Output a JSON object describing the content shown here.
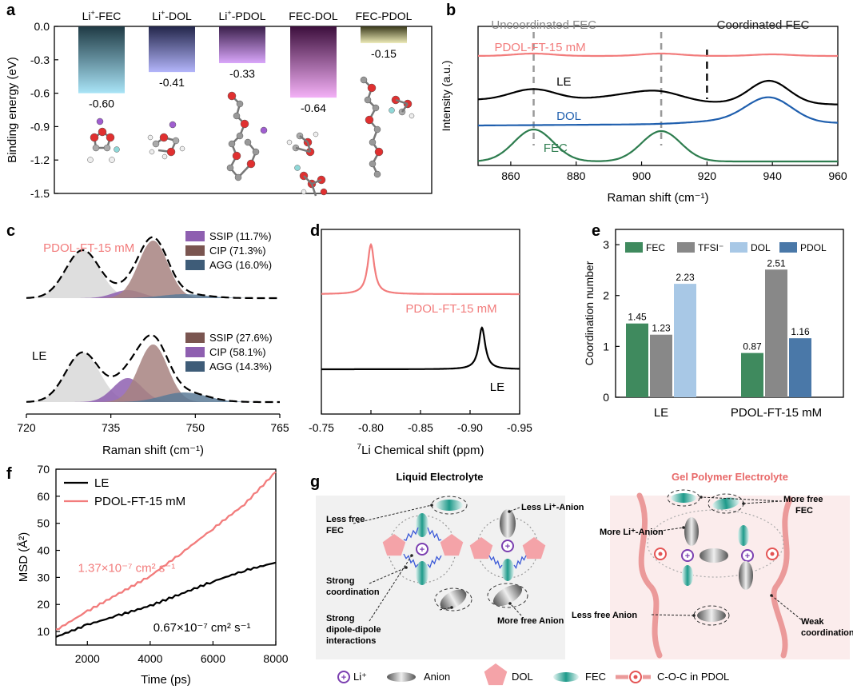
{
  "panels": {
    "a": "a",
    "b": "b",
    "c": "c",
    "d": "d",
    "e": "e",
    "f": "f",
    "g": "g"
  },
  "chart_data": [
    {
      "id": "a",
      "type": "bar",
      "title": "",
      "ylabel": "Binding energy (eV)",
      "ylim": [
        -1.5,
        0.0
      ],
      "yticks": [
        "0.0",
        "-0.3",
        "-0.6",
        "-0.9",
        "-1.2",
        "-1.5"
      ],
      "yticks_values": [
        0.0,
        -0.3,
        -0.6,
        -0.9,
        -1.2,
        -1.5
      ],
      "categories": [
        "Li⁺-FEC",
        "Li⁺-DOL",
        "Li⁺-PDOL",
        "FEC-DOL",
        "FEC-PDOL"
      ],
      "category_main": [
        "Li",
        "Li",
        "Li",
        "FEC-DOL",
        "FEC-PDOL"
      ],
      "category_sup": [
        "+",
        "+",
        "+",
        "",
        ""
      ],
      "category_rest": [
        "-FEC",
        "-DOL",
        "-PDOL",
        "",
        ""
      ],
      "values": [
        -0.6,
        -0.41,
        -0.33,
        -0.64,
        -0.15
      ],
      "value_labels": [
        "-0.60",
        "-0.41",
        "-0.33",
        "-0.64",
        "-0.15"
      ],
      "colors_top": [
        "#1f3a44",
        "#23264a",
        "#3a1f4a",
        "#3c0f3c",
        "#3a3a1c"
      ],
      "colors_bottom": [
        "#a9e4f7",
        "#b3b5fa",
        "#d9a6fa",
        "#f4b1f7",
        "#eceab7"
      ]
    },
    {
      "id": "b",
      "type": "line",
      "xlabel": "Raman shift (cm⁻¹)",
      "ylabel": "Intensity (a.u.)",
      "xlim": [
        850,
        960
      ],
      "xticks": [
        860,
        880,
        900,
        920,
        940,
        960
      ],
      "annotations": [
        "Uncoordinated FEC",
        "Coordinated FEC"
      ],
      "uncoordinated_lines_x": [
        867,
        906
      ],
      "coordinated_line_x": 920,
      "series": [
        {
          "name": "PDOL-FT-15 mM",
          "color": "#f27c7c",
          "peaks": [
            [
              867,
              0.5
            ],
            [
              906,
              0.5
            ],
            [
              940,
              0.3
            ]
          ]
        },
        {
          "name": "LE",
          "color": "#000000",
          "peaks": [
            [
              867,
              1.0
            ],
            [
              906,
              0.6
            ],
            [
              939,
              1.6
            ]
          ]
        },
        {
          "name": "DOL",
          "color": "#1f5fae",
          "peaks": [
            [
              939,
              1.1
            ]
          ]
        },
        {
          "name": "FEC",
          "color": "#2e7d4f",
          "peaks": [
            [
              867,
              1.3
            ],
            [
              906,
              1.1
            ]
          ]
        }
      ]
    },
    {
      "id": "c",
      "type": "area",
      "xlabel": "Raman shift (cm⁻¹)",
      "xlim": [
        720,
        765
      ],
      "xticks": [
        720,
        735,
        750,
        765
      ],
      "series_groups": [
        {
          "name": "PDOL-FT-15 mM",
          "name_color": "#f27c7c",
          "legend": [
            {
              "label": "SSIP (11.7%)",
              "color": "#8e5fb0"
            },
            {
              "label": "CIP (71.3%)",
              "color": "#7a5550"
            },
            {
              "label": "AGG (16.0%)",
              "color": "#3e5c78"
            }
          ]
        },
        {
          "name": "LE",
          "name_color": "#000000",
          "legend": [
            {
              "label": "SSIP (27.6%)",
              "color": "#7a5550"
            },
            {
              "label": "CIP (58.1%)",
              "color": "#8e5fb0"
            },
            {
              "label": "AGG (14.3%)",
              "color": "#3e5c78"
            }
          ]
        }
      ]
    },
    {
      "id": "d",
      "type": "line",
      "xlabel_sup": "7",
      "xlabel": "Li Chemical shift (ppm)",
      "xlim": [
        -0.75,
        -0.95
      ],
      "xticks": [
        "-0.75",
        "-0.80",
        "-0.85",
        "-0.90",
        "-0.95"
      ],
      "xticks_values": [
        -0.75,
        -0.8,
        -0.85,
        -0.9,
        -0.95
      ],
      "series": [
        {
          "name": "PDOL-FT-15 mM",
          "color": "#f27c7c",
          "peak": -0.8
        },
        {
          "name": "LE",
          "color": "#000000",
          "peak": -0.912
        }
      ]
    },
    {
      "id": "e",
      "type": "bar",
      "ylabel": "Coordination number",
      "ylim": [
        0,
        3.3
      ],
      "yticks": [
        0,
        1,
        2,
        3
      ],
      "categories": [
        "LE",
        "PDOL-FT-15 mM"
      ],
      "legend": [
        "FEC",
        "TFSI⁻",
        "DOL",
        "PDOL"
      ],
      "legend_colors": [
        "#3f8a5e",
        "#888888",
        "#a8c8e6",
        "#4a78a8"
      ],
      "series": [
        {
          "name": "FEC",
          "values": [
            1.45,
            0.87
          ]
        },
        {
          "name": "TFSI⁻",
          "values": [
            1.23,
            2.51
          ]
        },
        {
          "name": "DOL",
          "values": [
            2.23,
            null
          ]
        },
        {
          "name": "PDOL",
          "values": [
            null,
            1.16
          ]
        }
      ],
      "value_labels": {
        "LE": [
          "1.45",
          "1.23",
          "2.23"
        ],
        "PDOL-FT-15 mM": [
          "0.87",
          "2.51",
          "1.16"
        ]
      }
    },
    {
      "id": "f",
      "type": "line",
      "xlabel": "Time (ps)",
      "ylabel": "MSD (Å²)",
      "xlim": [
        1000,
        8000
      ],
      "ylim": [
        5,
        70
      ],
      "xticks": [
        2000,
        4000,
        6000,
        8000
      ],
      "yticks": [
        10,
        20,
        30,
        40,
        50,
        60,
        70
      ],
      "series": [
        {
          "name": "LE",
          "color": "#000000",
          "x": [
            1000,
            2000,
            3000,
            4000,
            5000,
            6000,
            7000,
            8000
          ],
          "y": [
            8,
            12.5,
            16,
            19.5,
            24,
            28.5,
            32.5,
            35.5
          ]
        },
        {
          "name": "PDOL-FT-15 mM",
          "color": "#f27c7c",
          "x": [
            1000,
            2000,
            3000,
            4000,
            5000,
            6000,
            7000,
            8000
          ],
          "y": [
            10.5,
            17.5,
            24,
            30.5,
            39,
            48,
            57,
            69
          ]
        }
      ],
      "annotations": [
        {
          "text": "1.37×10⁻⁷ cm² s⁻¹",
          "color": "#f27c7c"
        },
        {
          "text": "0.67×10⁻⁷ cm² s⁻¹",
          "color": "#000000"
        }
      ]
    }
  ],
  "g": {
    "left_title": "Liquid Electrolyte",
    "right_title": "Gel Polymer Electrolyte",
    "left_labels": [
      "Less free",
      "FEC",
      "Less Li⁺-Anion",
      "Strong",
      "coordination",
      "Strong",
      "dipole-dipole",
      "interactions",
      "More free Anion"
    ],
    "right_labels": [
      "More free",
      "FEC",
      "More Li⁺-Anion",
      "Less free Anion",
      "Weak",
      "coordination"
    ],
    "li_symbol": "+",
    "legend": [
      "Li⁺",
      "Anion",
      "DOL",
      "FEC",
      "C-O-C in PDOL"
    ]
  }
}
